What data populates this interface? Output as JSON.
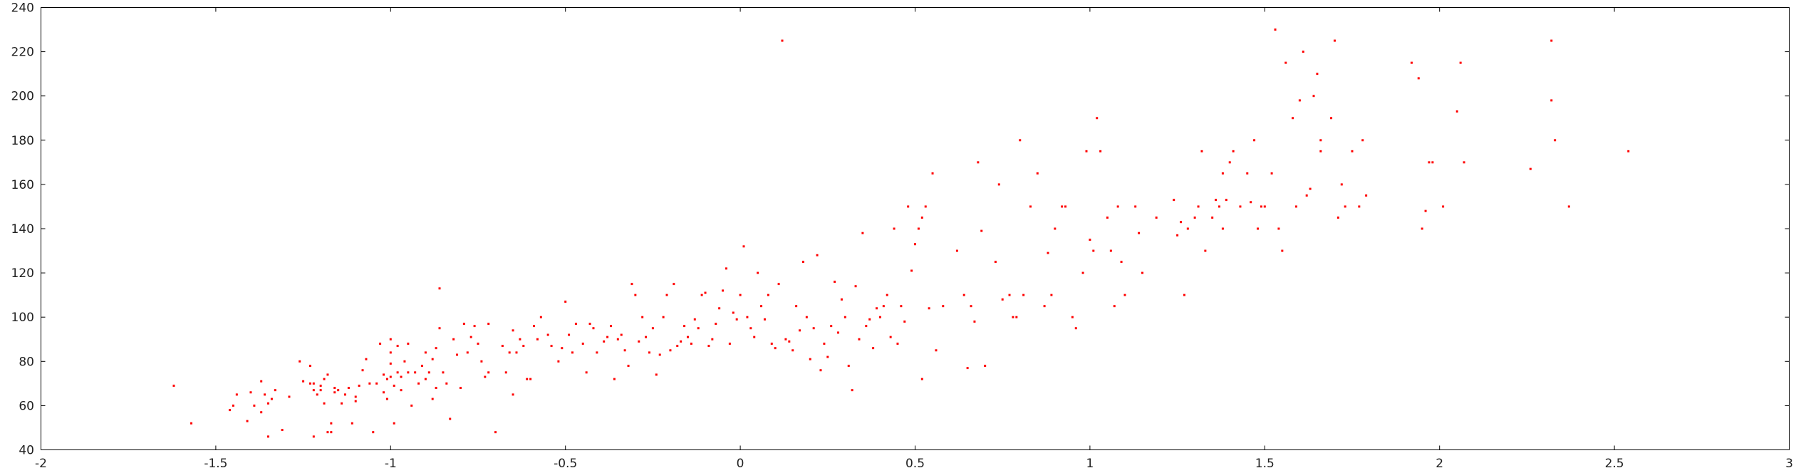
{
  "chart_data": {
    "type": "scatter",
    "title": "",
    "xlabel": "",
    "ylabel": "",
    "xlim": [
      -2,
      3
    ],
    "ylim": [
      40,
      240
    ],
    "x_ticks": [
      "-2",
      "-1.5",
      "-1",
      "-0.5",
      "0",
      "0.5",
      "1",
      "1.5",
      "2",
      "2.5",
      "3"
    ],
    "y_ticks": [
      "40",
      "60",
      "80",
      "100",
      "120",
      "140",
      "160",
      "180",
      "200",
      "220",
      "240"
    ],
    "grid": false,
    "legend": "none",
    "marker_color": "#ff0000",
    "series": [
      {
        "points": [
          [
            -1.62,
            69
          ],
          [
            -1.57,
            52
          ],
          [
            -1.46,
            58
          ],
          [
            -1.45,
            60
          ],
          [
            -1.44,
            65
          ],
          [
            -1.41,
            53
          ],
          [
            -1.4,
            66
          ],
          [
            -1.39,
            60
          ],
          [
            -1.37,
            71
          ],
          [
            -1.37,
            57
          ],
          [
            -1.36,
            65
          ],
          [
            -1.35,
            46
          ],
          [
            -1.35,
            61
          ],
          [
            -1.34,
            63
          ],
          [
            -1.33,
            67
          ],
          [
            -1.31,
            49
          ],
          [
            -1.29,
            64
          ],
          [
            -1.26,
            80
          ],
          [
            -1.25,
            71
          ],
          [
            -1.23,
            70
          ],
          [
            -1.23,
            78
          ],
          [
            -1.22,
            67
          ],
          [
            -1.22,
            70
          ],
          [
            -1.22,
            46
          ],
          [
            -1.21,
            65
          ],
          [
            -1.2,
            69
          ],
          [
            -1.2,
            67
          ],
          [
            -1.19,
            61
          ],
          [
            -1.19,
            72
          ],
          [
            -1.18,
            74
          ],
          [
            -1.18,
            48
          ],
          [
            -1.17,
            52
          ],
          [
            -1.17,
            48
          ],
          [
            -1.16,
            68
          ],
          [
            -1.16,
            66
          ],
          [
            -1.15,
            67
          ],
          [
            -1.14,
            61
          ],
          [
            -1.13,
            65
          ],
          [
            -1.12,
            68
          ],
          [
            -1.11,
            52
          ],
          [
            -1.1,
            64
          ],
          [
            -1.1,
            62
          ],
          [
            -1.09,
            69
          ],
          [
            -1.08,
            76
          ],
          [
            -1.07,
            81
          ],
          [
            -1.06,
            70
          ],
          [
            -1.05,
            48
          ],
          [
            -1.04,
            70
          ],
          [
            -1.03,
            88
          ],
          [
            -1.02,
            74
          ],
          [
            -1.02,
            66
          ],
          [
            -1.01,
            72
          ],
          [
            -1.01,
            63
          ],
          [
            -1.0,
            90
          ],
          [
            -1.0,
            84
          ],
          [
            -1.0,
            79
          ],
          [
            -1.0,
            73
          ],
          [
            -0.99,
            69
          ],
          [
            -0.99,
            52
          ],
          [
            -0.98,
            87
          ],
          [
            -0.98,
            75
          ],
          [
            -0.97,
            67
          ],
          [
            -0.97,
            73
          ],
          [
            -0.96,
            80
          ],
          [
            -0.95,
            75
          ],
          [
            -0.95,
            88
          ],
          [
            -0.94,
            60
          ],
          [
            -0.93,
            75
          ],
          [
            -0.92,
            70
          ],
          [
            -0.91,
            78
          ],
          [
            -0.9,
            84
          ],
          [
            -0.9,
            72
          ],
          [
            -0.89,
            75
          ],
          [
            -0.88,
            63
          ],
          [
            -0.88,
            81
          ],
          [
            -0.87,
            86
          ],
          [
            -0.87,
            68
          ],
          [
            -0.86,
            95
          ],
          [
            -0.86,
            113
          ],
          [
            -0.85,
            75
          ],
          [
            -0.84,
            70
          ],
          [
            -0.83,
            54
          ],
          [
            -0.82,
            90
          ],
          [
            -0.81,
            83
          ],
          [
            -0.8,
            68
          ],
          [
            -0.79,
            97
          ],
          [
            -0.78,
            84
          ],
          [
            -0.77,
            91
          ],
          [
            -0.76,
            96
          ],
          [
            -0.75,
            88
          ],
          [
            -0.74,
            80
          ],
          [
            -0.73,
            73
          ],
          [
            -0.72,
            75
          ],
          [
            -0.72,
            97
          ],
          [
            -0.7,
            48
          ],
          [
            -0.68,
            87
          ],
          [
            -0.67,
            75
          ],
          [
            -0.66,
            84
          ],
          [
            -0.65,
            94
          ],
          [
            -0.65,
            65
          ],
          [
            -0.64,
            84
          ],
          [
            -0.63,
            90
          ],
          [
            -0.62,
            87
          ],
          [
            -0.61,
            72
          ],
          [
            -0.6,
            72
          ],
          [
            -0.59,
            96
          ],
          [
            -0.58,
            90
          ],
          [
            -0.57,
            100
          ],
          [
            -0.55,
            92
          ],
          [
            -0.54,
            87
          ],
          [
            -0.52,
            80
          ],
          [
            -0.51,
            86
          ],
          [
            -0.5,
            107
          ],
          [
            -0.49,
            92
          ],
          [
            -0.48,
            84
          ],
          [
            -0.47,
            97
          ],
          [
            -0.45,
            88
          ],
          [
            -0.44,
            75
          ],
          [
            -0.43,
            97
          ],
          [
            -0.42,
            95
          ],
          [
            -0.41,
            84
          ],
          [
            -0.39,
            89
          ],
          [
            -0.38,
            91
          ],
          [
            -0.37,
            96
          ],
          [
            -0.36,
            72
          ],
          [
            -0.35,
            90
          ],
          [
            -0.34,
            92
          ],
          [
            -0.33,
            85
          ],
          [
            -0.32,
            78
          ],
          [
            -0.31,
            115
          ],
          [
            -0.3,
            110
          ],
          [
            -0.29,
            89
          ],
          [
            -0.28,
            100
          ],
          [
            -0.27,
            91
          ],
          [
            -0.26,
            84
          ],
          [
            -0.25,
            95
          ],
          [
            -0.24,
            74
          ],
          [
            -0.23,
            83
          ],
          [
            -0.22,
            100
          ],
          [
            -0.21,
            110
          ],
          [
            -0.2,
            85
          ],
          [
            -0.19,
            115
          ],
          [
            -0.18,
            87
          ],
          [
            -0.17,
            89
          ],
          [
            -0.16,
            96
          ],
          [
            -0.15,
            91
          ],
          [
            -0.14,
            88
          ],
          [
            -0.13,
            99
          ],
          [
            -0.12,
            95
          ],
          [
            -0.11,
            110
          ],
          [
            -0.1,
            111
          ],
          [
            -0.09,
            87
          ],
          [
            -0.08,
            90
          ],
          [
            -0.07,
            97
          ],
          [
            -0.06,
            104
          ],
          [
            -0.05,
            112
          ],
          [
            -0.04,
            122
          ],
          [
            -0.03,
            88
          ],
          [
            -0.02,
            102
          ],
          [
            -0.01,
            99
          ],
          [
            0.0,
            110
          ],
          [
            0.01,
            132
          ],
          [
            0.02,
            100
          ],
          [
            0.03,
            95
          ],
          [
            0.04,
            91
          ],
          [
            0.05,
            120
          ],
          [
            0.06,
            105
          ],
          [
            0.07,
            99
          ],
          [
            0.08,
            110
          ],
          [
            0.09,
            88
          ],
          [
            0.1,
            86
          ],
          [
            0.11,
            115
          ],
          [
            0.12,
            225
          ],
          [
            0.13,
            90
          ],
          [
            0.14,
            89
          ],
          [
            0.15,
            85
          ],
          [
            0.16,
            105
          ],
          [
            0.17,
            94
          ],
          [
            0.18,
            125
          ],
          [
            0.19,
            100
          ],
          [
            0.2,
            81
          ],
          [
            0.21,
            95
          ],
          [
            0.22,
            128
          ],
          [
            0.23,
            76
          ],
          [
            0.24,
            88
          ],
          [
            0.25,
            82
          ],
          [
            0.26,
            96
          ],
          [
            0.27,
            116
          ],
          [
            0.28,
            93
          ],
          [
            0.29,
            108
          ],
          [
            0.3,
            100
          ],
          [
            0.31,
            78
          ],
          [
            0.32,
            67
          ],
          [
            0.33,
            114
          ],
          [
            0.34,
            90
          ],
          [
            0.35,
            138
          ],
          [
            0.36,
            96
          ],
          [
            0.37,
            99
          ],
          [
            0.38,
            86
          ],
          [
            0.39,
            104
          ],
          [
            0.4,
            100
          ],
          [
            0.41,
            105
          ],
          [
            0.42,
            110
          ],
          [
            0.43,
            91
          ],
          [
            0.44,
            140
          ],
          [
            0.45,
            88
          ],
          [
            0.46,
            105
          ],
          [
            0.47,
            98
          ],
          [
            0.48,
            150
          ],
          [
            0.49,
            121
          ],
          [
            0.5,
            133
          ],
          [
            0.51,
            140
          ],
          [
            0.52,
            145
          ],
          [
            0.52,
            72
          ],
          [
            0.53,
            150
          ],
          [
            0.54,
            104
          ],
          [
            0.55,
            165
          ],
          [
            0.56,
            85
          ],
          [
            0.58,
            105
          ],
          [
            0.62,
            130
          ],
          [
            0.64,
            110
          ],
          [
            0.65,
            77
          ],
          [
            0.66,
            105
          ],
          [
            0.67,
            98
          ],
          [
            0.68,
            170
          ],
          [
            0.69,
            139
          ],
          [
            0.7,
            78
          ],
          [
            0.73,
            125
          ],
          [
            0.74,
            160
          ],
          [
            0.75,
            108
          ],
          [
            0.77,
            110
          ],
          [
            0.78,
            100
          ],
          [
            0.79,
            100
          ],
          [
            0.8,
            180
          ],
          [
            0.81,
            110
          ],
          [
            0.83,
            150
          ],
          [
            0.85,
            165
          ],
          [
            0.87,
            105
          ],
          [
            0.88,
            129
          ],
          [
            0.89,
            110
          ],
          [
            0.9,
            140
          ],
          [
            0.92,
            150
          ],
          [
            0.93,
            150
          ],
          [
            0.95,
            100
          ],
          [
            0.96,
            95
          ],
          [
            0.98,
            120
          ],
          [
            0.99,
            175
          ],
          [
            1.0,
            135
          ],
          [
            1.01,
            130
          ],
          [
            1.02,
            190
          ],
          [
            1.03,
            175
          ],
          [
            1.05,
            145
          ],
          [
            1.06,
            130
          ],
          [
            1.07,
            105
          ],
          [
            1.08,
            150
          ],
          [
            1.09,
            125
          ],
          [
            1.1,
            110
          ],
          [
            1.13,
            150
          ],
          [
            1.14,
            138
          ],
          [
            1.15,
            120
          ],
          [
            1.19,
            145
          ],
          [
            1.24,
            153
          ],
          [
            1.25,
            137
          ],
          [
            1.26,
            143
          ],
          [
            1.27,
            110
          ],
          [
            1.28,
            140
          ],
          [
            1.3,
            145
          ],
          [
            1.31,
            150
          ],
          [
            1.32,
            175
          ],
          [
            1.33,
            130
          ],
          [
            1.35,
            145
          ],
          [
            1.36,
            153
          ],
          [
            1.37,
            150
          ],
          [
            1.38,
            165
          ],
          [
            1.38,
            140
          ],
          [
            1.39,
            153
          ],
          [
            1.4,
            170
          ],
          [
            1.41,
            175
          ],
          [
            1.43,
            150
          ],
          [
            1.45,
            165
          ],
          [
            1.46,
            152
          ],
          [
            1.47,
            180
          ],
          [
            1.48,
            140
          ],
          [
            1.49,
            150
          ],
          [
            1.5,
            150
          ],
          [
            1.52,
            165
          ],
          [
            1.53,
            230
          ],
          [
            1.54,
            140
          ],
          [
            1.55,
            130
          ],
          [
            1.56,
            215
          ],
          [
            1.58,
            190
          ],
          [
            1.59,
            150
          ],
          [
            1.6,
            198
          ],
          [
            1.61,
            220
          ],
          [
            1.62,
            155
          ],
          [
            1.63,
            158
          ],
          [
            1.64,
            200
          ],
          [
            1.65,
            210
          ],
          [
            1.66,
            175
          ],
          [
            1.66,
            180
          ],
          [
            1.69,
            190
          ],
          [
            1.7,
            225
          ],
          [
            1.71,
            145
          ],
          [
            1.72,
            160
          ],
          [
            1.73,
            150
          ],
          [
            1.75,
            175
          ],
          [
            1.77,
            150
          ],
          [
            1.78,
            180
          ],
          [
            1.79,
            155
          ],
          [
            1.92,
            215
          ],
          [
            1.94,
            208
          ],
          [
            1.95,
            140
          ],
          [
            1.96,
            148
          ],
          [
            1.97,
            170
          ],
          [
            1.98,
            170
          ],
          [
            2.01,
            150
          ],
          [
            2.05,
            193
          ],
          [
            2.06,
            215
          ],
          [
            2.07,
            170
          ],
          [
            2.26,
            167
          ],
          [
            2.32,
            225
          ],
          [
            2.32,
            198
          ],
          [
            2.33,
            180
          ],
          [
            2.37,
            150
          ],
          [
            2.54,
            175
          ]
        ]
      }
    ]
  }
}
